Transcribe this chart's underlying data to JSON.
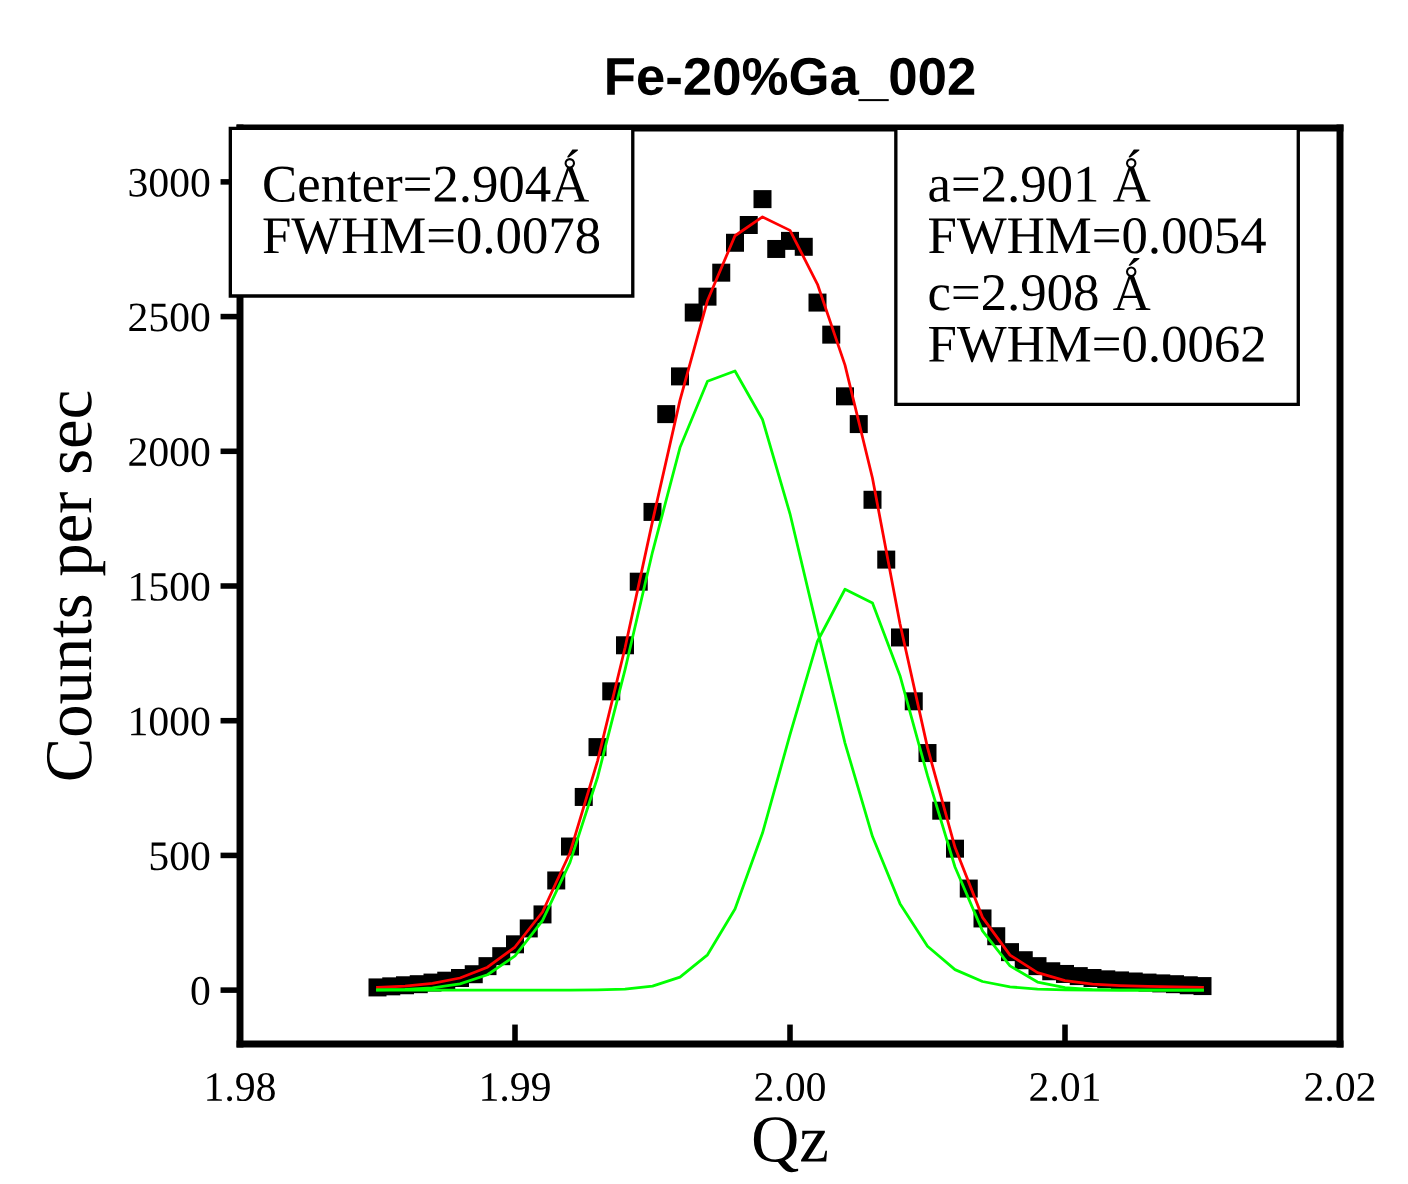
{
  "chart_data": {
    "type": "scatter",
    "title": "Fe-20%Ga_002",
    "xlabel": "Qz",
    "ylabel": "Counts per sec",
    "xlim": [
      1.98,
      2.02
    ],
    "xticks": [
      {
        "value": 1.98,
        "label": "1.98"
      },
      {
        "value": 1.99,
        "label": "1.99"
      },
      {
        "value": 2.0,
        "label": "2.00"
      },
      {
        "value": 2.01,
        "label": "2.01"
      },
      {
        "value": 2.02,
        "label": "2.02"
      }
    ],
    "ylim": [
      -200,
      3200
    ],
    "yticks": [
      0,
      500,
      1000,
      1500,
      2000,
      2500,
      3000
    ],
    "grid": false,
    "legend": false,
    "annotations": [
      "Center=2.904Ǻ\nFWHM=0.0078",
      "a=2.901 Ǻ\nFWHM=0.0054\nc=2.908 Ǻ\nFWHM=0.0062"
    ],
    "series": [
      {
        "color": "#000000",
        "marker": "square",
        "x": [
          1.985,
          1.9855,
          1.986,
          1.9865,
          1.987,
          1.9875,
          1.988,
          1.9885,
          1.989,
          1.9895,
          1.99,
          1.9905,
          1.991,
          1.9915,
          1.992,
          1.9925,
          1.993,
          1.9935,
          1.994,
          1.9945,
          1.995,
          1.9955,
          1.996,
          1.9965,
          1.997,
          1.9975,
          1.998,
          1.9985,
          1.999,
          1.9995,
          2.0,
          2.0005,
          2.001,
          2.0015,
          2.002,
          2.0025,
          2.003,
          2.0035,
          2.004,
          2.0045,
          2.005,
          2.0055,
          2.006,
          2.0065,
          2.007,
          2.0075,
          2.008,
          2.0085,
          2.009,
          2.0095,
          2.01,
          2.0105,
          2.011,
          2.0115,
          2.012,
          2.0125,
          2.013,
          2.0135,
          2.014,
          2.0145,
          2.015
        ],
        "values": [
          10,
          14,
          18,
          22,
          28,
          35,
          45,
          59,
          89,
          126,
          170,
          229,
          281,
          407,
          533,
          717,
          902,
          1109,
          1280,
          1516,
          1775,
          2138,
          2278,
          2515,
          2574,
          2663,
          2774,
          2840,
          2936,
          2751,
          2781,
          2759,
          2552,
          2433,
          2204,
          2101,
          1820,
          1598,
          1309,
          1072,
          880,
          666,
          525,
          377,
          266,
          200,
          141,
          111,
          89,
          70,
          60,
          52,
          45,
          40,
          36,
          32,
          28,
          25,
          22,
          18,
          15
        ]
      },
      {
        "type": "line",
        "color": "#ff0000",
        "marker": "none",
        "x": [
          1.985,
          1.986,
          1.987,
          1.988,
          1.989,
          1.99,
          1.991,
          1.992,
          1.993,
          1.994,
          1.995,
          1.996,
          1.997,
          1.998,
          1.999,
          2.0,
          2.001,
          2.002,
          2.003,
          2.004,
          2.005,
          2.006,
          2.007,
          2.008,
          2.009,
          2.01,
          2.011,
          2.012,
          2.013,
          2.014,
          2.015
        ],
        "values": [
          10,
          15,
          25,
          45,
          85,
          160,
          290,
          510,
          850,
          1270,
          1740,
          2190,
          2560,
          2800,
          2870,
          2820,
          2620,
          2320,
          1900,
          1360,
          900,
          530,
          270,
          130,
          65,
          35,
          22,
          17,
          14,
          12,
          10
        ]
      },
      {
        "type": "line",
        "color": "#00ff00",
        "marker": "none",
        "x": [
          1.985,
          1.986,
          1.987,
          1.988,
          1.989,
          1.99,
          1.991,
          1.992,
          1.993,
          1.994,
          1.995,
          1.996,
          1.997,
          1.998,
          1.999,
          2.0,
          2.001,
          2.002,
          2.003,
          2.004,
          2.005,
          2.006,
          2.007,
          2.008,
          2.009,
          2.01,
          2.011,
          2.012,
          2.013,
          2.014,
          2.015
        ],
        "values": [
          1,
          3,
          8,
          23,
          57,
          127,
          258,
          474,
          789,
          1189,
          1626,
          2014,
          2260,
          2298,
          2118,
          1768,
          1338,
          917,
          570,
          321,
          163,
          76,
          32,
          12,
          4,
          1,
          0,
          0,
          0,
          0,
          0
        ]
      },
      {
        "type": "line",
        "color": "#00ff00",
        "marker": "none",
        "x": [
          1.985,
          1.986,
          1.987,
          1.988,
          1.989,
          1.99,
          1.991,
          1.992,
          1.993,
          1.994,
          1.995,
          1.996,
          1.997,
          1.998,
          1.999,
          2.0,
          2.001,
          2.002,
          2.003,
          2.004,
          2.005,
          2.006,
          2.007,
          2.008,
          2.009,
          2.01,
          2.011,
          2.012,
          2.013,
          2.014,
          2.015
        ],
        "values": [
          0,
          0,
          0,
          0,
          0,
          0,
          0,
          0,
          1,
          4,
          15,
          48,
          131,
          301,
          583,
          948,
          1295,
          1488,
          1437,
          1167,
          796,
          457,
          220,
          90,
          30,
          9,
          2,
          0,
          0,
          0,
          0
        ]
      }
    ]
  }
}
